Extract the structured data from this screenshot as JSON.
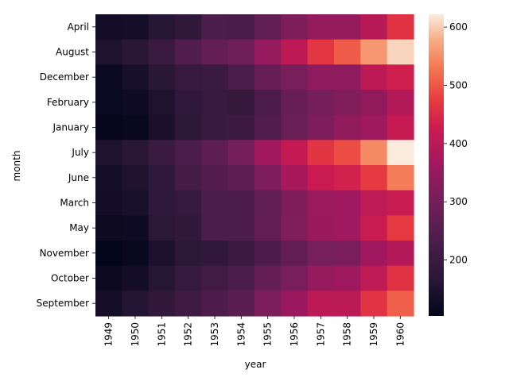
{
  "chart_data": {
    "type": "heatmap",
    "title": "",
    "xlabel": "year",
    "ylabel": "month",
    "x": [
      "1949",
      "1950",
      "1951",
      "1952",
      "1953",
      "1954",
      "1955",
      "1956",
      "1957",
      "1958",
      "1959",
      "1960"
    ],
    "y": [
      "April",
      "August",
      "December",
      "February",
      "January",
      "July",
      "June",
      "March",
      "May",
      "November",
      "October",
      "September"
    ],
    "values": [
      [
        129,
        135,
        163,
        181,
        235,
        227,
        269,
        313,
        348,
        348,
        396,
        461
      ],
      [
        148,
        170,
        199,
        242,
        272,
        293,
        347,
        405,
        467,
        505,
        559,
        606
      ],
      [
        118,
        140,
        166,
        194,
        201,
        229,
        278,
        306,
        336,
        337,
        405,
        432
      ],
      [
        118,
        126,
        150,
        180,
        196,
        188,
        233,
        277,
        301,
        318,
        342,
        391
      ],
      [
        112,
        115,
        145,
        171,
        196,
        204,
        242,
        284,
        315,
        340,
        360,
        417
      ],
      [
        148,
        170,
        199,
        230,
        264,
        302,
        364,
        413,
        465,
        491,
        548,
        622
      ],
      [
        135,
        149,
        178,
        218,
        243,
        264,
        315,
        374,
        422,
        435,
        472,
        535
      ],
      [
        132,
        141,
        178,
        193,
        236,
        235,
        267,
        317,
        356,
        362,
        406,
        419
      ],
      [
        121,
        125,
        172,
        183,
        229,
        234,
        270,
        318,
        355,
        363,
        420,
        472
      ],
      [
        104,
        114,
        146,
        172,
        180,
        203,
        237,
        271,
        305,
        310,
        362,
        390
      ],
      [
        119,
        133,
        162,
        191,
        211,
        229,
        274,
        306,
        347,
        359,
        407,
        461
      ],
      [
        136,
        158,
        184,
        209,
        237,
        259,
        312,
        355,
        404,
        404,
        463,
        508
      ]
    ],
    "colorbar": {
      "ticks": [
        200,
        300,
        400,
        500,
        600
      ],
      "range": [
        104,
        622
      ],
      "colormap": "rocket"
    },
    "grid": false,
    "legend": "colorbar-right"
  }
}
